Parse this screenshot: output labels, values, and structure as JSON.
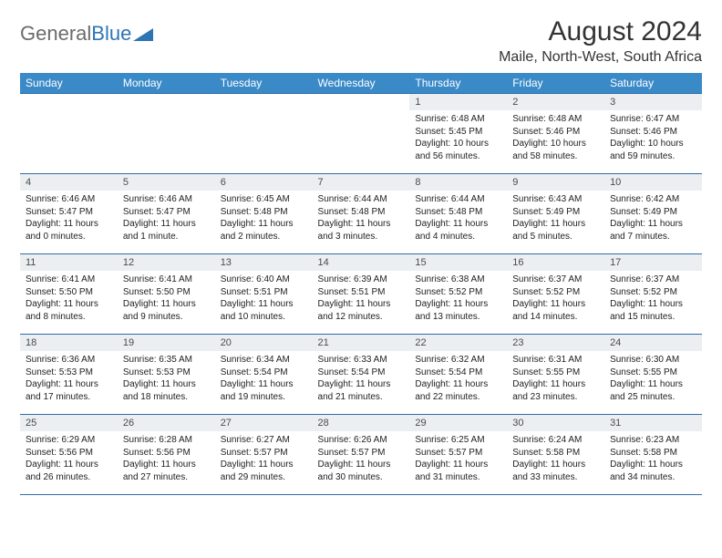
{
  "brand": {
    "part1": "General",
    "part2": "Blue"
  },
  "title": "August 2024",
  "location": "Maile, North-West, South Africa",
  "colors": {
    "header_bg": "#3a8ac8",
    "header_text": "#ffffff",
    "border": "#2e6ca8",
    "daynum_bg": "#eceff1",
    "logo_gray": "#6b6b6b",
    "logo_blue": "#2e75b6"
  },
  "day_headers": [
    "Sunday",
    "Monday",
    "Tuesday",
    "Wednesday",
    "Thursday",
    "Friday",
    "Saturday"
  ],
  "weeks": [
    [
      null,
      null,
      null,
      null,
      {
        "n": "1",
        "sr": "6:48 AM",
        "ss": "5:45 PM",
        "dl": "10 hours and 56 minutes."
      },
      {
        "n": "2",
        "sr": "6:48 AM",
        "ss": "5:46 PM",
        "dl": "10 hours and 58 minutes."
      },
      {
        "n": "3",
        "sr": "6:47 AM",
        "ss": "5:46 PM",
        "dl": "10 hours and 59 minutes."
      }
    ],
    [
      {
        "n": "4",
        "sr": "6:46 AM",
        "ss": "5:47 PM",
        "dl": "11 hours and 0 minutes."
      },
      {
        "n": "5",
        "sr": "6:46 AM",
        "ss": "5:47 PM",
        "dl": "11 hours and 1 minute."
      },
      {
        "n": "6",
        "sr": "6:45 AM",
        "ss": "5:48 PM",
        "dl": "11 hours and 2 minutes."
      },
      {
        "n": "7",
        "sr": "6:44 AM",
        "ss": "5:48 PM",
        "dl": "11 hours and 3 minutes."
      },
      {
        "n": "8",
        "sr": "6:44 AM",
        "ss": "5:48 PM",
        "dl": "11 hours and 4 minutes."
      },
      {
        "n": "9",
        "sr": "6:43 AM",
        "ss": "5:49 PM",
        "dl": "11 hours and 5 minutes."
      },
      {
        "n": "10",
        "sr": "6:42 AM",
        "ss": "5:49 PM",
        "dl": "11 hours and 7 minutes."
      }
    ],
    [
      {
        "n": "11",
        "sr": "6:41 AM",
        "ss": "5:50 PM",
        "dl": "11 hours and 8 minutes."
      },
      {
        "n": "12",
        "sr": "6:41 AM",
        "ss": "5:50 PM",
        "dl": "11 hours and 9 minutes."
      },
      {
        "n": "13",
        "sr": "6:40 AM",
        "ss": "5:51 PM",
        "dl": "11 hours and 10 minutes."
      },
      {
        "n": "14",
        "sr": "6:39 AM",
        "ss": "5:51 PM",
        "dl": "11 hours and 12 minutes."
      },
      {
        "n": "15",
        "sr": "6:38 AM",
        "ss": "5:52 PM",
        "dl": "11 hours and 13 minutes."
      },
      {
        "n": "16",
        "sr": "6:37 AM",
        "ss": "5:52 PM",
        "dl": "11 hours and 14 minutes."
      },
      {
        "n": "17",
        "sr": "6:37 AM",
        "ss": "5:52 PM",
        "dl": "11 hours and 15 minutes."
      }
    ],
    [
      {
        "n": "18",
        "sr": "6:36 AM",
        "ss": "5:53 PM",
        "dl": "11 hours and 17 minutes."
      },
      {
        "n": "19",
        "sr": "6:35 AM",
        "ss": "5:53 PM",
        "dl": "11 hours and 18 minutes."
      },
      {
        "n": "20",
        "sr": "6:34 AM",
        "ss": "5:54 PM",
        "dl": "11 hours and 19 minutes."
      },
      {
        "n": "21",
        "sr": "6:33 AM",
        "ss": "5:54 PM",
        "dl": "11 hours and 21 minutes."
      },
      {
        "n": "22",
        "sr": "6:32 AM",
        "ss": "5:54 PM",
        "dl": "11 hours and 22 minutes."
      },
      {
        "n": "23",
        "sr": "6:31 AM",
        "ss": "5:55 PM",
        "dl": "11 hours and 23 minutes."
      },
      {
        "n": "24",
        "sr": "6:30 AM",
        "ss": "5:55 PM",
        "dl": "11 hours and 25 minutes."
      }
    ],
    [
      {
        "n": "25",
        "sr": "6:29 AM",
        "ss": "5:56 PM",
        "dl": "11 hours and 26 minutes."
      },
      {
        "n": "26",
        "sr": "6:28 AM",
        "ss": "5:56 PM",
        "dl": "11 hours and 27 minutes."
      },
      {
        "n": "27",
        "sr": "6:27 AM",
        "ss": "5:57 PM",
        "dl": "11 hours and 29 minutes."
      },
      {
        "n": "28",
        "sr": "6:26 AM",
        "ss": "5:57 PM",
        "dl": "11 hours and 30 minutes."
      },
      {
        "n": "29",
        "sr": "6:25 AM",
        "ss": "5:57 PM",
        "dl": "11 hours and 31 minutes."
      },
      {
        "n": "30",
        "sr": "6:24 AM",
        "ss": "5:58 PM",
        "dl": "11 hours and 33 minutes."
      },
      {
        "n": "31",
        "sr": "6:23 AM",
        "ss": "5:58 PM",
        "dl": "11 hours and 34 minutes."
      }
    ]
  ],
  "labels": {
    "sunrise": "Sunrise: ",
    "sunset": "Sunset: ",
    "daylight": "Daylight: "
  }
}
